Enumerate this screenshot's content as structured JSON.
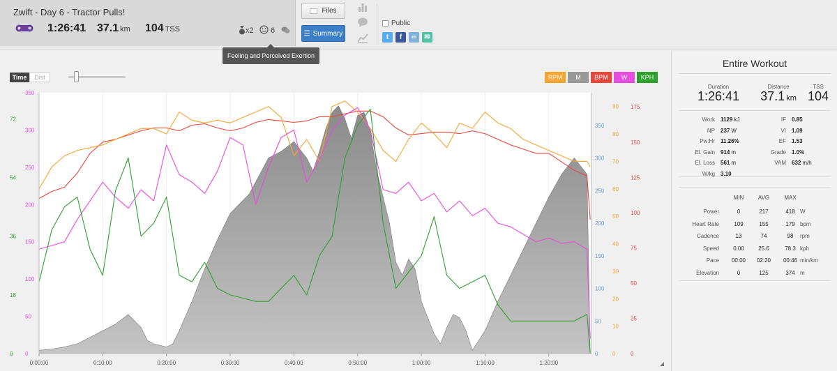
{
  "workout": {
    "title": "Zwift - Day 6 - Tractor Pulls!",
    "duration": "1:26:41",
    "distance": "37.1",
    "distance_unit": "km",
    "tss": "104",
    "tss_unit": "TSS",
    "medal_count": "x2",
    "feeling": "6"
  },
  "buttons": {
    "files": "Files",
    "summary": "Summary"
  },
  "share": {
    "public_label": "Public",
    "public_checked": false,
    "twitter": "t",
    "facebook": "f",
    "link": "∞",
    "email": "✉"
  },
  "tooltip": "Feeling and Perceived Exertion",
  "chart_controls": {
    "time": "Time",
    "dist": "Dist"
  },
  "legend": [
    {
      "label": "RPM",
      "color": "#f7a531"
    },
    {
      "label": "M",
      "color": "#999999"
    },
    {
      "label": "BPM",
      "color": "#e8473c"
    },
    {
      "label": "W",
      "color": "#e84be0"
    },
    {
      "label": "KPH",
      "color": "#2ea02e"
    }
  ],
  "chart_data": {
    "type": "line",
    "x_ticks": [
      "0:00:00",
      "0:10:00",
      "0:20:00",
      "0:30:00",
      "0:40:00",
      "0:50:00",
      "1:00:00",
      "1:10:00",
      "1:20:00"
    ],
    "x_range_minutes": [
      0,
      86.7
    ],
    "axes": {
      "kph_left": {
        "color": "#2ea02e",
        "ticks": [
          "0",
          "18",
          "36",
          "54",
          "72"
        ],
        "range": [
          0,
          80
        ]
      },
      "watts_left": {
        "color": "#e84be0",
        "ticks": [
          "0",
          "50",
          "100",
          "150",
          "200",
          "250",
          "300",
          "350"
        ],
        "range": [
          0,
          350
        ]
      },
      "elevation_right": {
        "color": "#6a9ed0",
        "ticks": [
          "0",
          "50",
          "100",
          "150",
          "200",
          "250",
          "300",
          "350"
        ],
        "range": [
          0,
          400
        ]
      },
      "rpm_right": {
        "color": "#f7a531",
        "ticks": [
          "0",
          "10",
          "20",
          "30",
          "40",
          "50",
          "60",
          "70",
          "80",
          "90"
        ],
        "range": [
          0,
          95
        ]
      },
      "bpm_right": {
        "color": "#e8473c",
        "ticks": [
          "0",
          "25",
          "50",
          "75",
          "100",
          "125",
          "150",
          "175"
        ],
        "range": [
          0,
          185
        ]
      }
    },
    "series": [
      {
        "name": "M",
        "color": "#9a9a9a",
        "x": [
          0,
          2,
          4,
          6,
          8,
          10,
          12,
          14,
          16,
          17,
          18,
          20,
          21,
          22,
          24,
          26,
          28,
          30,
          33,
          36,
          38,
          40,
          42,
          43,
          44,
          45,
          46,
          47,
          48,
          49,
          50,
          51,
          52,
          53,
          54,
          55,
          56,
          57,
          58,
          59,
          60,
          62,
          63,
          64,
          65,
          66,
          67,
          68,
          70,
          72,
          74,
          76,
          78,
          80,
          82,
          84,
          86,
          86.5
        ],
        "y": [
          5,
          7,
          10,
          15,
          25,
          35,
          45,
          60,
          40,
          20,
          15,
          10,
          15,
          35,
          80,
          130,
          175,
          215,
          245,
          300,
          310,
          325,
          300,
          280,
          310,
          345,
          370,
          380,
          360,
          330,
          365,
          370,
          340,
          280,
          240,
          200,
          140,
          120,
          145,
          130,
          80,
          30,
          15,
          40,
          60,
          55,
          35,
          5,
          35,
          80,
          120,
          160,
          200,
          240,
          275,
          300,
          275,
          0
        ]
      },
      {
        "name": "BPM",
        "color": "#e8473c",
        "x": [
          0,
          2,
          4,
          6,
          8,
          10,
          12,
          14,
          16,
          18,
          20,
          22,
          24,
          26,
          28,
          30,
          32,
          34,
          36,
          38,
          40,
          42,
          44,
          46,
          48,
          50,
          52,
          54,
          56,
          58,
          60,
          62,
          64,
          66,
          68,
          70,
          72,
          74,
          76,
          78,
          80,
          82,
          84,
          86,
          86.5
        ],
        "y": [
          110,
          115,
          118,
          128,
          142,
          150,
          152,
          155,
          158,
          160,
          160,
          158,
          162,
          163,
          160,
          158,
          160,
          164,
          166,
          165,
          164,
          165,
          168,
          168,
          170,
          172,
          172,
          168,
          160,
          155,
          156,
          157,
          157,
          156,
          158,
          156,
          152,
          148,
          145,
          142,
          142,
          136,
          130,
          126,
          95
        ]
      },
      {
        "name": "RPM",
        "color": "#f7a531",
        "x": [
          0,
          2,
          4,
          6,
          8,
          10,
          12,
          14,
          16,
          18,
          20,
          22,
          24,
          26,
          28,
          30,
          32,
          34,
          36,
          38,
          40,
          42,
          44,
          46,
          48,
          50,
          52,
          54,
          56,
          58,
          60,
          62,
          64,
          66,
          68,
          70,
          72,
          74,
          76,
          78,
          80,
          82,
          84,
          86,
          86.5
        ],
        "y": [
          60,
          68,
          72,
          74,
          75,
          76,
          78,
          80,
          82,
          82,
          80,
          88,
          85,
          84,
          85,
          84,
          86,
          88,
          90,
          86,
          72,
          78,
          70,
          90,
          92,
          88,
          82,
          74,
          70,
          78,
          84,
          80,
          75,
          84,
          82,
          88,
          84,
          82,
          78,
          76,
          74,
          72,
          70,
          70,
          68
        ]
      },
      {
        "name": "W",
        "color": "#e84be0",
        "x": [
          0,
          2,
          4,
          6,
          8,
          10,
          12,
          14,
          16,
          18,
          20,
          22,
          24,
          26,
          28,
          30,
          32,
          34,
          36,
          38,
          40,
          42,
          44,
          46,
          48,
          50,
          52,
          54,
          56,
          58,
          60,
          62,
          64,
          66,
          68,
          70,
          72,
          74,
          76,
          78,
          80,
          82,
          84,
          86,
          86.5
        ],
        "y": [
          140,
          145,
          150,
          180,
          205,
          230,
          210,
          195,
          220,
          205,
          280,
          240,
          230,
          215,
          245,
          290,
          280,
          200,
          250,
          290,
          300,
          230,
          260,
          300,
          320,
          330,
          300,
          220,
          215,
          230,
          205,
          215,
          190,
          205,
          185,
          195,
          175,
          170,
          160,
          150,
          155,
          148,
          150,
          140,
          20
        ]
      },
      {
        "name": "KPH",
        "color": "#2ea02e",
        "x": [
          0,
          2,
          4,
          6,
          8,
          10,
          12,
          14,
          16,
          18,
          20,
          22,
          24,
          26,
          28,
          30,
          32,
          34,
          36,
          38,
          40,
          42,
          44,
          46,
          48,
          50,
          52,
          54,
          56,
          58,
          60,
          62,
          64,
          66,
          68,
          70,
          72,
          74,
          76,
          78,
          80,
          82,
          84,
          86,
          86.5
        ],
        "y": [
          22,
          38,
          45,
          48,
          32,
          24,
          50,
          60,
          36,
          40,
          48,
          24,
          22,
          28,
          20,
          18,
          17,
          16,
          16,
          20,
          24,
          18,
          30,
          36,
          60,
          70,
          75,
          40,
          20,
          25,
          30,
          42,
          24,
          20,
          22,
          24,
          15,
          10,
          10,
          10,
          10,
          10,
          10,
          12,
          0
        ]
      }
    ]
  },
  "panel": {
    "title": "Entire Workout",
    "duration_label": "Duration",
    "duration": "1:26:41",
    "distance_label": "Distance",
    "distance": "37.1",
    "distance_unit": "km",
    "tss_label": "TSS",
    "tss": "104",
    "left_metrics": [
      {
        "label": "Work",
        "value": "1129",
        "unit": "kJ"
      },
      {
        "label": "NP",
        "value": "237",
        "unit": "W"
      },
      {
        "label": "Pw:Hr",
        "value": "11.26%",
        "unit": ""
      },
      {
        "label": "El. Gain",
        "value": "914",
        "unit": "m"
      },
      {
        "label": "El. Loss",
        "value": "561",
        "unit": "m"
      },
      {
        "label": "W/kg",
        "value": "3.10",
        "unit": ""
      }
    ],
    "right_metrics": [
      {
        "label": "IF",
        "value": "0.85",
        "unit": ""
      },
      {
        "label": "VI",
        "value": "1.09",
        "unit": ""
      },
      {
        "label": "EF",
        "value": "1.53",
        "unit": ""
      },
      {
        "label": "Grade",
        "value": "1.0%",
        "unit": ""
      },
      {
        "label": "VAM",
        "value": "632",
        "unit": "m/h"
      }
    ],
    "table_headers": [
      "MIN",
      "AVG",
      "MAX"
    ],
    "table_rows": [
      {
        "label": "Power",
        "min": "0",
        "avg": "217",
        "max": "418",
        "unit": "W"
      },
      {
        "label": "Heart Rate",
        "min": "109",
        "avg": "155",
        "max": "179",
        "unit": "bpm"
      },
      {
        "label": "Cadence",
        "min": "13",
        "avg": "74",
        "max": "98",
        "unit": "rpm"
      },
      {
        "label": "Speed",
        "min": "0.00",
        "avg": "25.6",
        "max": "78.3",
        "unit": "kph"
      },
      {
        "label": "Pace",
        "min": "00:00",
        "avg": "02:20",
        "max": "00:46",
        "unit": "min/km"
      },
      {
        "label": "Elevation",
        "min": "0",
        "avg": "125",
        "max": "374",
        "unit": "m"
      }
    ]
  }
}
